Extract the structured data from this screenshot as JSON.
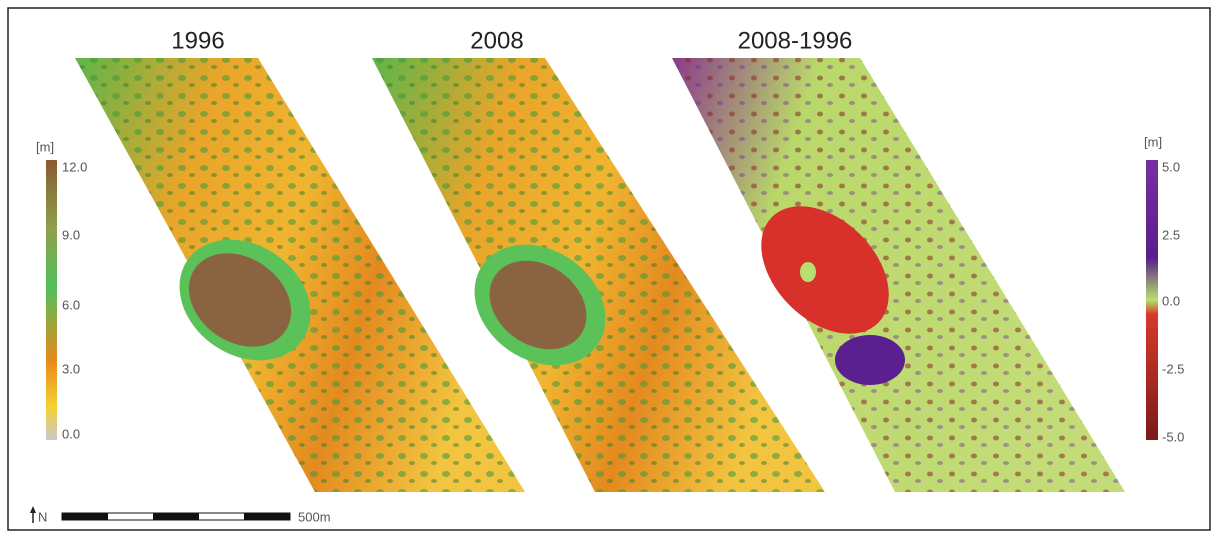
{
  "panels": [
    {
      "title": "1996"
    },
    {
      "title": "2008"
    },
    {
      "title": "2008-1996"
    }
  ],
  "legend_left": {
    "unit": "[m]",
    "labels": [
      "12.0",
      "9.0",
      "6.0",
      "3.0",
      "0.0"
    ]
  },
  "legend_right": {
    "unit": "[m]",
    "labels": [
      "5.0",
      "2.5",
      "0.0",
      "-2.5",
      "-5.0"
    ]
  },
  "north": "N",
  "scale": "500m"
}
